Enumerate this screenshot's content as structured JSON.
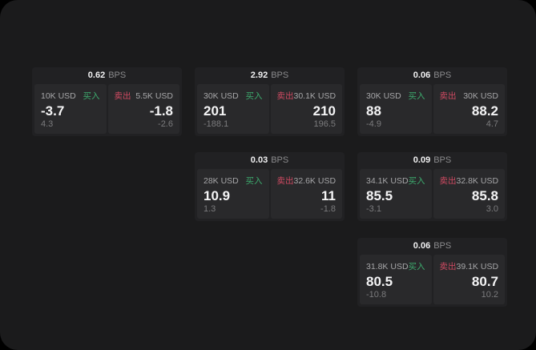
{
  "page": {
    "bps_suffix": "BPS",
    "buy_label": "买入",
    "sell_label": "卖出",
    "colors": {
      "buy": "#3dab6e",
      "sell": "#cf4a62",
      "panel_bg": "#1b1b1c",
      "card_bg": "#212123",
      "tile_bg": "#29292b"
    }
  },
  "cards": [
    {
      "row": 0,
      "col": 0,
      "bps": "0.62",
      "buy": {
        "amount": "10K USD",
        "value": "-3.7",
        "sub": "4.3"
      },
      "sell": {
        "amount": "5.5K USD",
        "value": "-1.8",
        "sub": "-2.6"
      }
    },
    {
      "row": 0,
      "col": 1,
      "bps": "2.92",
      "buy": {
        "amount": "30K USD",
        "value": "201",
        "sub": "-188.1"
      },
      "sell": {
        "amount": "30.1K USD",
        "value": "210",
        "sub": "196.5"
      }
    },
    {
      "row": 0,
      "col": 2,
      "bps": "0.06",
      "buy": {
        "amount": "30K USD",
        "value": "88",
        "sub": "-4.9"
      },
      "sell": {
        "amount": "30K USD",
        "value": "88.2",
        "sub": "4.7"
      }
    },
    {
      "row": 1,
      "col": 1,
      "bps": "0.03",
      "buy": {
        "amount": "28K USD",
        "value": "10.9",
        "sub": "1.3"
      },
      "sell": {
        "amount": "32.6K USD",
        "value": "11",
        "sub": "-1.8"
      }
    },
    {
      "row": 1,
      "col": 2,
      "bps": "0.09",
      "buy": {
        "amount": "34.1K USD",
        "value": "85.5",
        "sub": "-3.1"
      },
      "sell": {
        "amount": "32.8K USD",
        "value": "85.8",
        "sub": "3.0"
      }
    },
    {
      "row": 2,
      "col": 2,
      "bps": "0.06",
      "buy": {
        "amount": "31.8K USD",
        "value": "80.5",
        "sub": "-10.8"
      },
      "sell": {
        "amount": "39.1K USD",
        "value": "80.7",
        "sub": "10.2"
      }
    }
  ]
}
